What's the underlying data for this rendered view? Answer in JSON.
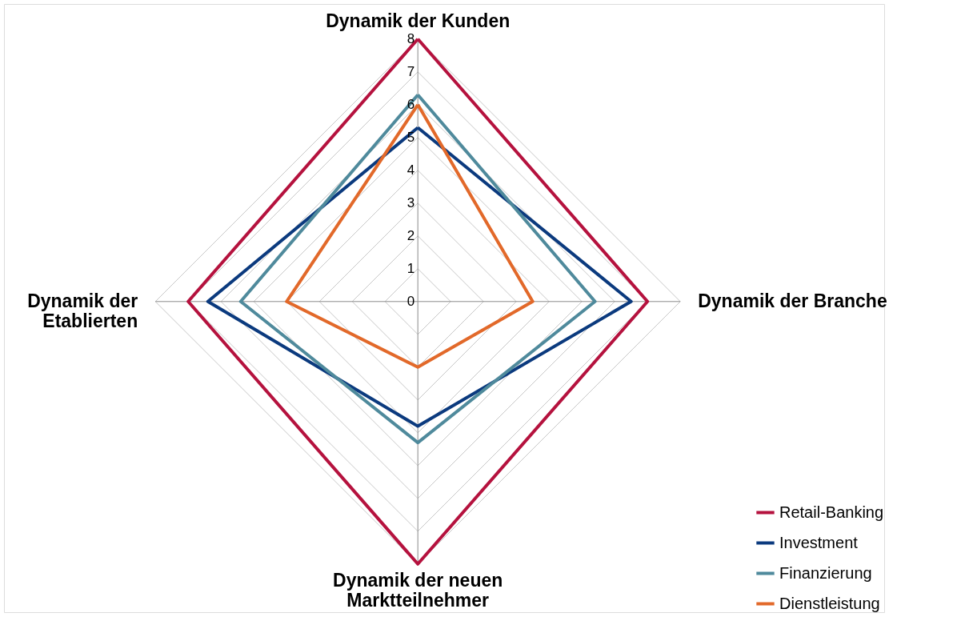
{
  "chart_data": {
    "type": "radar",
    "categories": [
      "Dynamik der Kunden",
      "Dynamik der Branche",
      "Dynamik der neuen Marktteilnehmer",
      "Dynamik der Etablierten"
    ],
    "series": [
      {
        "name": "Retail-Banking",
        "color": "#b5123e",
        "values": [
          8,
          7,
          8,
          7
        ]
      },
      {
        "name": "Investment",
        "color": "#0b3a7e",
        "values": [
          5.3,
          6.5,
          3.8,
          6.4
        ]
      },
      {
        "name": "Finanzierung",
        "color": "#4f8a9c",
        "values": [
          6.3,
          5.4,
          4.3,
          5.4
        ]
      },
      {
        "name": "Dienstleistung",
        "color": "#e2692a",
        "values": [
          6,
          3.5,
          2,
          4
        ]
      }
    ],
    "ylim": [
      0,
      8
    ],
    "yticks": [
      0,
      1,
      2,
      3,
      4,
      5,
      6,
      7,
      8
    ],
    "grid": true,
    "legend": "bottom right"
  }
}
